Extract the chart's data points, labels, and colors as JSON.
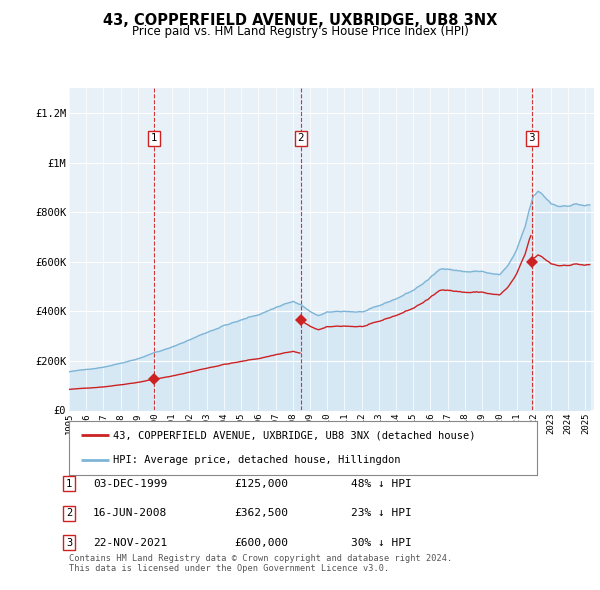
{
  "title": "43, COPPERFIELD AVENUE, UXBRIDGE, UB8 3NX",
  "subtitle": "Price paid vs. HM Land Registry's House Price Index (HPI)",
  "background_color": "#ffffff",
  "plot_bg_color": "#e8f0f8",
  "ylim": [
    0,
    1300000
  ],
  "yticks": [
    0,
    200000,
    400000,
    600000,
    800000,
    1000000,
    1200000
  ],
  "ytick_labels": [
    "£0",
    "£200K",
    "£400K",
    "£600K",
    "£800K",
    "£1M",
    "£1.2M"
  ],
  "xmin": 1995.0,
  "xmax": 2025.5,
  "hpi_color": "#7eb5d6",
  "hpi_fill_color": "#c5dff0",
  "price_color": "#cc2222",
  "vline_color": "#cc2222",
  "sale1_x": 1999.917,
  "sale1_y": 125000,
  "sale2_x": 2008.458,
  "sale2_y": 362500,
  "sale3_x": 2021.896,
  "sale3_y": 600000,
  "legend_label_red": "43, COPPERFIELD AVENUE, UXBRIDGE, UB8 3NX (detached house)",
  "legend_label_blue": "HPI: Average price, detached house, Hillingdon",
  "table_entries": [
    {
      "num": "1",
      "date": "03-DEC-1999",
      "price": "£125,000",
      "note": "48% ↓ HPI"
    },
    {
      "num": "2",
      "date": "16-JUN-2008",
      "price": "£362,500",
      "note": "23% ↓ HPI"
    },
    {
      "num": "3",
      "date": "22-NOV-2021",
      "price": "£600,000",
      "note": "30% ↓ HPI"
    }
  ],
  "footer": "Contains HM Land Registry data © Crown copyright and database right 2024.\nThis data is licensed under the Open Government Licence v3.0.",
  "title_fontsize": 10.5,
  "subtitle_fontsize": 8.5,
  "tick_fontsize": 7.5,
  "legend_fontsize": 7.5,
  "table_fontsize": 8
}
